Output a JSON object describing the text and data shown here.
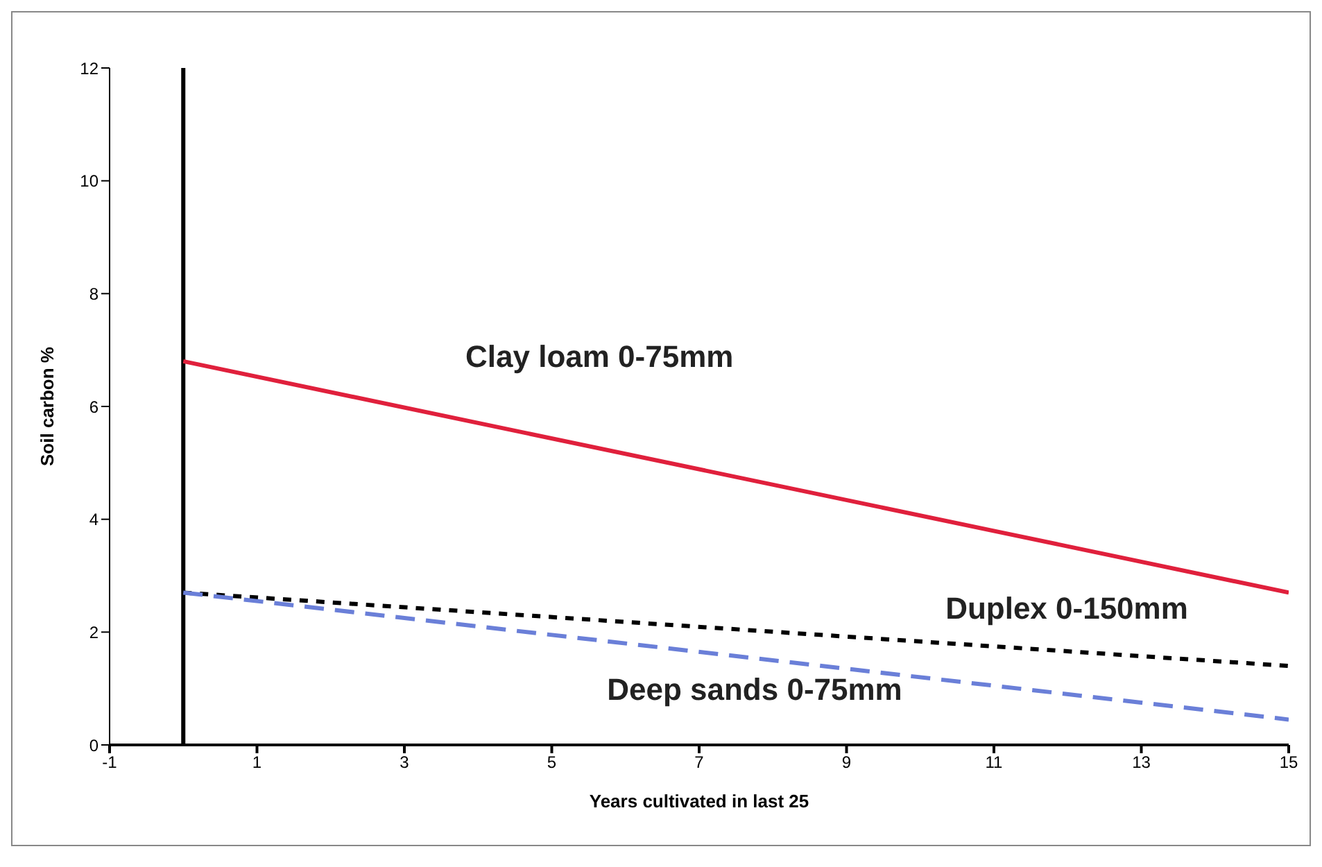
{
  "chart_data": {
    "type": "line",
    "xlabel": "Years cultivated in last 25",
    "ylabel": "Soil carbon %",
    "x": [
      0,
      15
    ],
    "series": [
      {
        "name": "Clay loam 0-75mm",
        "color": "#e0203c",
        "values": [
          6.8,
          2.7
        ],
        "line_style": "solid"
      },
      {
        "name": "Duplex 0-150mm",
        "color": "#000000",
        "values": [
          2.7,
          1.4
        ],
        "line_style": "dotted"
      },
      {
        "name": "Deep sands 0-75mm",
        "color": "#6a7fd8",
        "values": [
          2.7,
          0.45
        ],
        "line_style": "dashed"
      }
    ],
    "xlim": [
      -1,
      15
    ],
    "xticks": [
      -1,
      1,
      3,
      5,
      7,
      9,
      11,
      13,
      15
    ],
    "ylim": [
      0,
      12
    ],
    "yticks": [
      0,
      2,
      4,
      6,
      8,
      10,
      12
    ],
    "marker": "none",
    "ref_lines": [
      {
        "axis": "x",
        "value": 0,
        "color": "#000000"
      }
    ]
  }
}
